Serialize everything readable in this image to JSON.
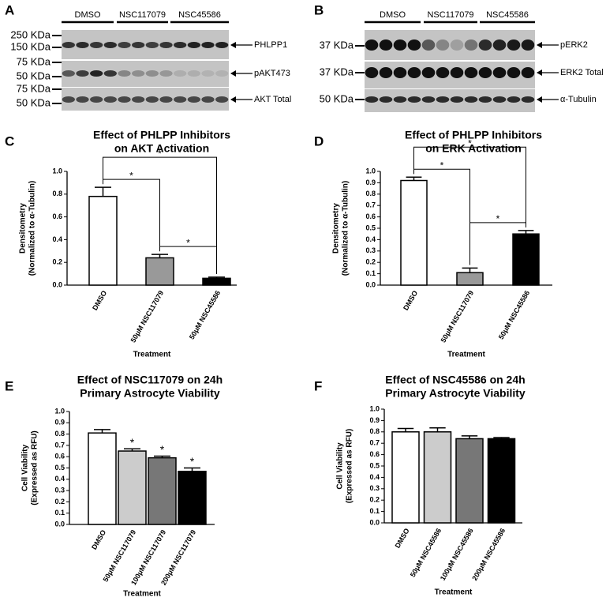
{
  "panel_labels": [
    "A",
    "B",
    "C",
    "D",
    "E",
    "F"
  ],
  "blots": [
    {
      "groups": [
        "DMSO",
        "NSC117079",
        "NSC45586"
      ],
      "markers": [
        "250 KDa",
        "150 KDa",
        "75 KDa",
        "50 KDa",
        "75 KDa",
        "50 KDa"
      ],
      "bands": [
        "PHLPP1",
        "pAKT473",
        "AKT Total"
      ]
    },
    {
      "groups": [
        "DMSO",
        "NSC117079",
        "NSC45586"
      ],
      "markers": [
        "37 KDa",
        "37 KDa",
        "50 KDa"
      ],
      "bands": [
        "pERK2",
        "ERK2 Total",
        "α-Tubulin"
      ]
    }
  ],
  "chart_data": [
    {
      "type": "bar",
      "title": [
        "Effect of PHLPP Inhibitors",
        "on AKT Activation"
      ],
      "ylabel": [
        "Densitometry",
        "(Normalized to α-Tubulin)"
      ],
      "xlabel": "Treatment",
      "categories": [
        "DMSO",
        "50μM NSC117079",
        "50μM NSC45586"
      ],
      "values": [
        0.78,
        0.24,
        0.06
      ],
      "errors": [
        0.08,
        0.03,
        0.01
      ],
      "colors": [
        "#ffffff",
        "#999999",
        "#000000"
      ],
      "ylim": [
        0,
        1.0
      ],
      "yticks": [
        {
          "value": 0,
          "label": "0.0"
        },
        {
          "value": 0.2,
          "label": "0.2"
        },
        {
          "value": 0.4,
          "label": "0.4"
        },
        {
          "value": 0.6,
          "label": "0.6"
        },
        {
          "value": 0.8,
          "label": "0.8"
        },
        {
          "value": 1.0,
          "label": "1.0"
        }
      ],
      "brackets": [
        {
          "pair": [
            0,
            1
          ],
          "label": "*"
        },
        {
          "pair": [
            0,
            2
          ],
          "label": "*"
        },
        {
          "pair": [
            1,
            2
          ],
          "label": "*"
        }
      ]
    },
    {
      "type": "bar",
      "title": [
        "Effect of PHLPP Inhibitors",
        "on ERK Activation"
      ],
      "ylabel": [
        "Densitometry",
        "(Normalized to α-Tubulin)"
      ],
      "xlabel": "Treatment",
      "categories": [
        "DMSO",
        "50μM NSC117079",
        "50μM NSC45586"
      ],
      "values": [
        0.92,
        0.11,
        0.45
      ],
      "errors": [
        0.03,
        0.04,
        0.03
      ],
      "colors": [
        "#ffffff",
        "#999999",
        "#000000"
      ],
      "ylim": [
        0,
        1.0
      ],
      "yticks": [
        {
          "value": 0,
          "label": "0.0"
        },
        {
          "value": 0.1,
          "label": "0.1"
        },
        {
          "value": 0.2,
          "label": "0.2"
        },
        {
          "value": 0.3,
          "label": "0.3"
        },
        {
          "value": 0.4,
          "label": "0.4"
        },
        {
          "value": 0.5,
          "label": "0.5"
        },
        {
          "value": 0.6,
          "label": "0.6"
        },
        {
          "value": 0.7,
          "label": "0.7"
        },
        {
          "value": 0.8,
          "label": "0.8"
        },
        {
          "value": 0.9,
          "label": "0.9"
        },
        {
          "value": 1.0,
          "label": "1.0"
        }
      ],
      "brackets": [
        {
          "pair": [
            0,
            1
          ],
          "label": "*"
        },
        {
          "pair": [
            0,
            2
          ],
          "label": "*"
        },
        {
          "pair": [
            1,
            2
          ],
          "label": "*"
        }
      ]
    },
    {
      "type": "bar",
      "title": [
        "Effect of NSC117079 on 24h",
        "Primary Astrocyte Viability"
      ],
      "ylabel": [
        "Cell Viability",
        "(Expressed as RFU)"
      ],
      "xlabel": "Treatment",
      "categories": [
        "DMSO",
        "50μM NSC117079",
        "100μM NSC117079",
        "200μM NSC117079"
      ],
      "values": [
        0.81,
        0.65,
        0.59,
        0.47
      ],
      "errors": [
        0.03,
        0.02,
        0.015,
        0.03
      ],
      "colors": [
        "#ffffff",
        "#cccccc",
        "#777777",
        "#000000"
      ],
      "ylim": [
        0,
        1.0
      ],
      "yticks": [
        {
          "value": 0,
          "label": "0.0"
        },
        {
          "value": 0.1,
          "label": "0.1"
        },
        {
          "value": 0.2,
          "label": "0.2"
        },
        {
          "value": 0.3,
          "label": "0.3"
        },
        {
          "value": 0.4,
          "label": "0.4"
        },
        {
          "value": 0.5,
          "label": "0.5"
        },
        {
          "value": 0.6,
          "label": "0.6"
        },
        {
          "value": 0.7,
          "label": "0.7"
        },
        {
          "value": 0.8,
          "label": "0.8"
        },
        {
          "value": 0.9,
          "label": "0.9"
        },
        {
          "value": 1.0,
          "label": "1.0"
        }
      ],
      "stars": [
        {
          "bar": 1,
          "label": "*"
        },
        {
          "bar": 2,
          "label": "*"
        },
        {
          "bar": 3,
          "label": "*"
        }
      ]
    },
    {
      "type": "bar",
      "title": [
        "Effect of NSC45586 on 24h",
        "Primary Astrocyte Viability"
      ],
      "ylabel": [
        "Cell Viability",
        "(Expressed as RFU)"
      ],
      "xlabel": "Treatment",
      "categories": [
        "DMSO",
        "50μM NSC45586",
        "100μM NSC45586",
        "200μM NSC45586"
      ],
      "values": [
        0.8,
        0.8,
        0.74,
        0.74
      ],
      "errors": [
        0.03,
        0.035,
        0.025,
        0.01
      ],
      "colors": [
        "#ffffff",
        "#cccccc",
        "#777777",
        "#000000"
      ],
      "ylim": [
        0,
        1.0
      ],
      "yticks": [
        {
          "value": 0,
          "label": "0.0"
        },
        {
          "value": 0.1,
          "label": "0.1"
        },
        {
          "value": 0.2,
          "label": "0.2"
        },
        {
          "value": 0.3,
          "label": "0.3"
        },
        {
          "value": 0.4,
          "label": "0.4"
        },
        {
          "value": 0.5,
          "label": "0.5"
        },
        {
          "value": 0.6,
          "label": "0.6"
        },
        {
          "value": 0.7,
          "label": "0.7"
        },
        {
          "value": 0.8,
          "label": "0.8"
        },
        {
          "value": 0.9,
          "label": "0.9"
        },
        {
          "value": 1.0,
          "label": "1.0"
        }
      ]
    }
  ]
}
